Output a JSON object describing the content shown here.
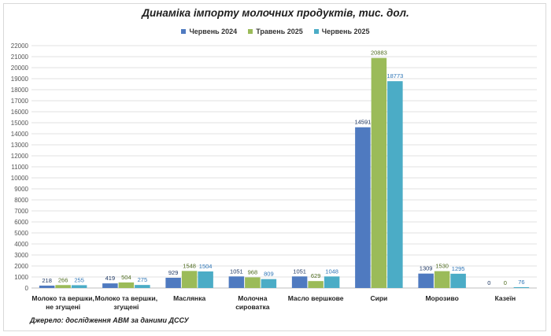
{
  "chart_data": {
    "type": "bar",
    "title": "Динаміка імпорту молочних продуктів, тис. дол.",
    "categories": [
      [
        "Молоко та вершки,",
        "не згущені"
      ],
      [
        "Молоко та вершки,",
        "згущені"
      ],
      [
        "Маслянка"
      ],
      [
        "Молочна",
        "сироватка"
      ],
      [
        "Масло вершкове"
      ],
      [
        "Сири"
      ],
      [
        "Морозиво"
      ],
      [
        "Казеїн"
      ]
    ],
    "series": [
      {
        "name": "Червень 2024",
        "color": "#4f7ac0",
        "values": [
          218,
          419,
          929,
          1051,
          1051,
          14591,
          1309,
          0
        ]
      },
      {
        "name": "Травень 2025",
        "color": "#9bbb59",
        "values": [
          266,
          504,
          1548,
          968,
          629,
          20883,
          1530,
          0
        ]
      },
      {
        "name": "Червень 2025",
        "color": "#4bacc6",
        "values": [
          255,
          275,
          1504,
          809,
          1048,
          18773,
          1295,
          76
        ]
      }
    ],
    "label_colors": [
      "#1f3864",
      "#4e6b1f",
      "#2e75b6"
    ],
    "ylim": [
      0,
      22000
    ],
    "ytick_step": 1000,
    "legend_position": "top",
    "grid": true
  },
  "source": "Джерело: дослідження АВМ за даними ДССУ"
}
